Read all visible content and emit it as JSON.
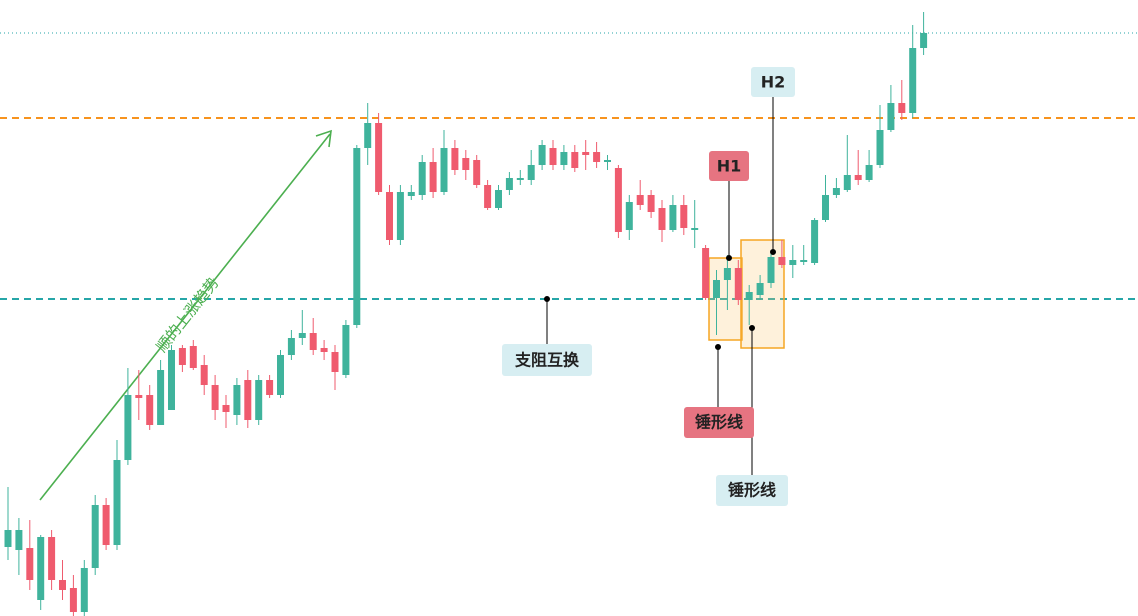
{
  "chart_data": {
    "type": "candlestick",
    "ylim": [
      0,
      616
    ],
    "up_color": "#3fb39c",
    "down_color": "#ef5b6e",
    "open": [
      69,
      66,
      68,
      16,
      79,
      36,
      28,
      4,
      48,
      111,
      71,
      156,
      221,
      221,
      191,
      206,
      268,
      270,
      251,
      231,
      211,
      201,
      236,
      196,
      236,
      221,
      261,
      278,
      283,
      268,
      264,
      241,
      291,
      468,
      493,
      424,
      376,
      420,
      421,
      454,
      424,
      468,
      458,
      456,
      431,
      408,
      426,
      436,
      436,
      451,
      468,
      451,
      464,
      464,
      464,
      454,
      448,
      386,
      421,
      421,
      408,
      386,
      411,
      386,
      368,
      318,
      336,
      348,
      316,
      321,
      333,
      359,
      351,
      354,
      353,
      396,
      421,
      426,
      441,
      436,
      451,
      486,
      513,
      503,
      568
    ],
    "high": [
      129,
      98,
      96,
      81,
      86,
      56,
      41,
      56,
      121,
      118,
      176,
      248,
      246,
      231,
      256,
      271,
      271,
      276,
      261,
      241,
      221,
      238,
      246,
      241,
      241,
      266,
      286,
      306,
      298,
      276,
      271,
      296,
      471,
      513,
      503,
      431,
      431,
      431,
      461,
      468,
      486,
      476,
      466,
      461,
      436,
      431,
      444,
      446,
      466,
      476,
      476,
      471,
      471,
      476,
      474,
      461,
      451,
      421,
      436,
      426,
      416,
      421,
      421,
      416,
      371,
      346,
      361,
      356,
      331,
      341,
      366,
      376,
      371,
      371,
      398,
      441,
      438,
      481,
      466,
      466,
      511,
      531,
      536,
      591,
      604
    ],
    "low": [
      56,
      41,
      26,
      6,
      26,
      16,
      0,
      0,
      41,
      66,
      66,
      151,
      196,
      186,
      191,
      206,
      244,
      246,
      221,
      196,
      188,
      191,
      188,
      191,
      218,
      218,
      256,
      271,
      261,
      256,
      226,
      238,
      288,
      451,
      421,
      371,
      371,
      416,
      416,
      418,
      421,
      441,
      436,
      428,
      406,
      406,
      421,
      431,
      431,
      446,
      446,
      446,
      444,
      446,
      448,
      446,
      378,
      376,
      406,
      398,
      374,
      384,
      381,
      368,
      316,
      281,
      306,
      311,
      291,
      316,
      328,
      348,
      338,
      351,
      351,
      394,
      418,
      424,
      431,
      434,
      448,
      484,
      496,
      498,
      561
    ],
    "close": [
      86,
      86,
      36,
      79,
      36,
      26,
      4,
      48,
      111,
      71,
      156,
      221,
      218,
      191,
      246,
      266,
      251,
      248,
      231,
      206,
      204,
      231,
      196,
      236,
      221,
      261,
      278,
      283,
      266,
      264,
      244,
      291,
      468,
      493,
      424,
      376,
      424,
      424,
      454,
      424,
      468,
      446,
      446,
      431,
      408,
      426,
      438,
      438,
      451,
      471,
      451,
      464,
      448,
      461,
      454,
      456,
      384,
      414,
      411,
      404,
      386,
      411,
      388,
      388,
      318,
      336,
      348,
      316,
      324,
      333,
      359,
      351,
      356,
      356,
      396,
      421,
      428,
      441,
      436,
      451,
      486,
      513,
      503,
      568,
      583
    ],
    "levels": [
      {
        "value": 498,
        "color": "#f7931e",
        "style": "dashed"
      },
      {
        "value": 317,
        "color": "#26a6a8",
        "style": "dashed"
      },
      {
        "value": 583,
        "color": "#26a6a8",
        "style": "dotted"
      }
    ],
    "trend_label": "顺的上涨趋势",
    "annotations": [
      "支阻互换",
      "H1",
      "H2",
      "锤形线",
      "锤形线"
    ]
  }
}
